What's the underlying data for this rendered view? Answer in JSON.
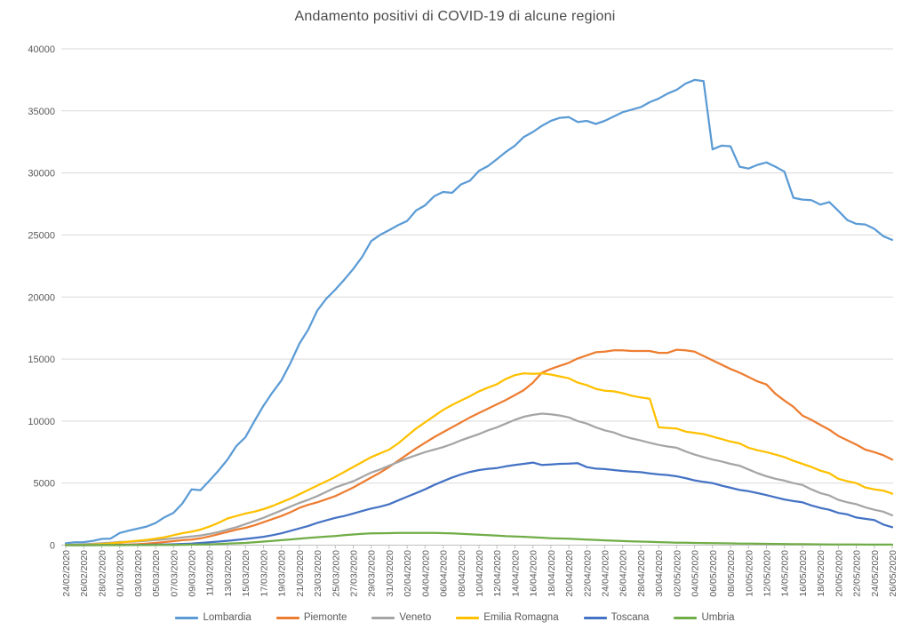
{
  "title": "Andamento positivi di COVID-19 di alcune regioni",
  "colors": {
    "text": "#595959",
    "grid": "#D9D9D9",
    "axis": "#BFBFBF",
    "background": "#FFFFFF"
  },
  "chart_data": {
    "type": "line",
    "title": "Andamento positivi di COVID-19 di alcune regioni",
    "xlabel": "",
    "ylabel": "",
    "ylim": [
      0,
      40000
    ],
    "yticks": [
      0,
      5000,
      10000,
      15000,
      20000,
      25000,
      30000,
      35000,
      40000
    ],
    "grid": "horizontal",
    "legend_position": "bottom",
    "x_tick_step": 2,
    "x": [
      "24/02/2020",
      "25/02/2020",
      "26/02/2020",
      "27/02/2020",
      "28/02/2020",
      "29/02/2020",
      "01/03/2020",
      "02/03/2020",
      "03/03/2020",
      "04/03/2020",
      "05/03/2020",
      "06/03/2020",
      "07/03/2020",
      "08/03/2020",
      "09/03/2020",
      "10/03/2020",
      "11/03/2020",
      "12/03/2020",
      "13/03/2020",
      "14/03/2020",
      "15/03/2020",
      "16/03/2020",
      "17/03/2020",
      "18/03/2020",
      "19/03/2020",
      "20/03/2020",
      "21/03/2020",
      "22/03/2020",
      "23/03/2020",
      "24/03/2020",
      "25/03/2020",
      "26/03/2020",
      "27/03/2020",
      "28/03/2020",
      "29/03/2020",
      "30/03/2020",
      "31/03/2020",
      "01/04/2020",
      "02/04/2020",
      "03/04/2020",
      "04/04/2020",
      "05/04/2020",
      "06/04/2020",
      "07/04/2020",
      "08/04/2020",
      "09/04/2020",
      "10/04/2020",
      "11/04/2020",
      "12/04/2020",
      "13/04/2020",
      "14/04/2020",
      "15/04/2020",
      "16/04/2020",
      "17/04/2020",
      "18/04/2020",
      "19/04/2020",
      "20/04/2020",
      "21/04/2020",
      "22/04/2020",
      "23/04/2020",
      "24/04/2020",
      "25/04/2020",
      "26/04/2020",
      "27/04/2020",
      "28/04/2020",
      "29/04/2020",
      "30/04/2020",
      "01/05/2020",
      "02/05/2020",
      "03/05/2020",
      "04/05/2020",
      "05/05/2020",
      "06/05/2020",
      "07/05/2020",
      "08/05/2020",
      "09/05/2020",
      "10/05/2020",
      "11/05/2020",
      "12/05/2020",
      "13/05/2020",
      "14/05/2020",
      "15/05/2020",
      "16/05/2020",
      "17/05/2020",
      "18/05/2020",
      "19/05/2020",
      "20/05/2020",
      "21/05/2020",
      "22/05/2020",
      "23/05/2020",
      "24/05/2020",
      "25/05/2020",
      "26/05/2020"
    ],
    "series": [
      {
        "name": "Lombardia",
        "color": "#5B9BD5",
        "values": [
          150,
          230,
          240,
          340,
          500,
          530,
          980,
          1170,
          1330,
          1500,
          1780,
          2250,
          2610,
          3370,
          4490,
          4430,
          5200,
          6000,
          6900,
          8000,
          8700,
          10000,
          11230,
          12300,
          13270,
          14650,
          16220,
          17380,
          18910,
          19870,
          20590,
          21400,
          22260,
          23240,
          24510,
          25010,
          25390,
          25790,
          26130,
          26970,
          27390,
          28120,
          28470,
          28400,
          29080,
          29380,
          30170,
          30550,
          31110,
          31700,
          32200,
          32900,
          33300,
          33800,
          34200,
          34440,
          34500,
          34100,
          34200,
          33950,
          34200,
          34550,
          34900,
          35100,
          35300,
          35700,
          36000,
          36400,
          36700,
          37200,
          37500,
          37400,
          31900,
          32200,
          32150,
          30500,
          30350,
          30650,
          30850,
          30500,
          30100,
          28000,
          27850,
          27800,
          27450,
          27650,
          26950,
          26200,
          25900,
          25850,
          25500,
          24900,
          24600
        ]
      },
      {
        "name": "Piemonte",
        "color": "#ED7D31",
        "values": [
          2,
          3,
          3,
          5,
          10,
          15,
          50,
          55,
          80,
          130,
          180,
          250,
          320,
          400,
          450,
          550,
          700,
          880,
          1070,
          1250,
          1400,
          1600,
          1850,
          2100,
          2350,
          2650,
          3000,
          3250,
          3450,
          3700,
          3950,
          4300,
          4650,
          5050,
          5450,
          5850,
          6300,
          6800,
          7300,
          7800,
          8250,
          8700,
          9100,
          9500,
          9900,
          10300,
          10650,
          11000,
          11350,
          11700,
          12100,
          12500,
          13100,
          13900,
          14200,
          14450,
          14700,
          15050,
          15300,
          15550,
          15600,
          15700,
          15700,
          15650,
          15650,
          15650,
          15500,
          15500,
          15750,
          15700,
          15600,
          15250,
          14900,
          14550,
          14200,
          13900,
          13550,
          13200,
          12950,
          12200,
          11650,
          11150,
          10450,
          10100,
          9700,
          9300,
          8800,
          8450,
          8100,
          7700,
          7500,
          7250,
          6900
        ]
      },
      {
        "name": "Veneto",
        "color": "#A5A5A5",
        "values": [
          30,
          40,
          70,
          110,
          150,
          190,
          260,
          270,
          310,
          360,
          410,
          470,
          540,
          620,
          700,
          780,
          900,
          1050,
          1250,
          1450,
          1700,
          1950,
          2200,
          2500,
          2800,
          3100,
          3400,
          3650,
          3950,
          4300,
          4650,
          4900,
          5150,
          5500,
          5850,
          6100,
          6400,
          6700,
          7000,
          7250,
          7500,
          7700,
          7900,
          8150,
          8450,
          8700,
          8950,
          9250,
          9500,
          9800,
          10100,
          10350,
          10500,
          10600,
          10550,
          10450,
          10300,
          10000,
          9800,
          9500,
          9250,
          9080,
          8800,
          8600,
          8440,
          8250,
          8080,
          7950,
          7850,
          7550,
          7300,
          7100,
          6900,
          6750,
          6550,
          6400,
          6100,
          5800,
          5550,
          5350,
          5200,
          5000,
          4850,
          4500,
          4200,
          4000,
          3650,
          3450,
          3300,
          3050,
          2850,
          2700,
          2400
        ]
      },
      {
        "name": "Emilia Romagna",
        "color": "#FFC000",
        "values": [
          10,
          18,
          25,
          50,
          95,
          145,
          215,
          285,
          355,
          420,
          530,
          640,
          800,
          970,
          1080,
          1250,
          1500,
          1800,
          2150,
          2350,
          2550,
          2700,
          2900,
          3150,
          3450,
          3750,
          4100,
          4450,
          4800,
          5150,
          5500,
          5900,
          6300,
          6700,
          7100,
          7400,
          7700,
          8200,
          8800,
          9400,
          9900,
          10400,
          10900,
          11300,
          11650,
          12000,
          12400,
          12700,
          12970,
          13400,
          13700,
          13850,
          13800,
          13850,
          13750,
          13600,
          13450,
          13100,
          12900,
          12600,
          12450,
          12400,
          12250,
          12050,
          11900,
          11800,
          9500,
          9450,
          9400,
          9150,
          9050,
          8950,
          8750,
          8550,
          8350,
          8200,
          7850,
          7650,
          7500,
          7300,
          7100,
          6800,
          6550,
          6300,
          6000,
          5800,
          5350,
          5150,
          5000,
          4650,
          4500,
          4400,
          4150
        ]
      },
      {
        "name": "Toscana",
        "color": "#4472C4",
        "values": [
          0,
          0,
          2,
          2,
          5,
          8,
          13,
          15,
          20,
          30,
          40,
          55,
          75,
          100,
          130,
          180,
          230,
          290,
          350,
          420,
          500,
          580,
          670,
          800,
          950,
          1150,
          1350,
          1550,
          1800,
          2000,
          2200,
          2350,
          2550,
          2750,
          2950,
          3100,
          3300,
          3600,
          3900,
          4200,
          4500,
          4850,
          5150,
          5450,
          5700,
          5900,
          6050,
          6150,
          6220,
          6350,
          6460,
          6550,
          6650,
          6460,
          6500,
          6550,
          6570,
          6600,
          6290,
          6170,
          6130,
          6050,
          5980,
          5930,
          5880,
          5780,
          5700,
          5650,
          5550,
          5400,
          5220,
          5100,
          5000,
          4800,
          4630,
          4450,
          4350,
          4200,
          4030,
          3850,
          3680,
          3550,
          3450,
          3200,
          3000,
          2850,
          2600,
          2480,
          2230,
          2120,
          2020,
          1660,
          1450
        ]
      },
      {
        "name": "Umbria",
        "color": "#70AD47",
        "values": [
          0,
          0,
          0,
          0,
          0,
          0,
          2,
          5,
          8,
          10,
          15,
          20,
          25,
          30,
          40,
          50,
          65,
          90,
          120,
          150,
          180,
          230,
          290,
          340,
          400,
          460,
          520,
          580,
          640,
          690,
          740,
          800,
          860,
          910,
          950,
          960,
          970,
          980,
          985,
          990,
          985,
          980,
          970,
          950,
          920,
          880,
          840,
          800,
          770,
          720,
          695,
          670,
          635,
          600,
          560,
          540,
          520,
          480,
          450,
          420,
          390,
          360,
          330,
          310,
          290,
          265,
          240,
          220,
          200,
          190,
          180,
          170,
          160,
          150,
          140,
          130,
          120,
          112,
          105,
          98,
          90,
          82,
          76,
          70,
          65,
          60,
          55,
          52,
          48,
          45,
          43,
          41,
          40
        ]
      }
    ]
  }
}
